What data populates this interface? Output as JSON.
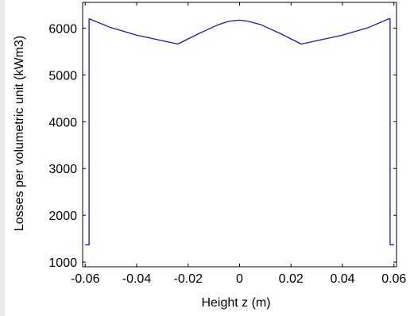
{
  "chart_data": {
    "type": "line",
    "title": "",
    "xlabel": "Height z (m)",
    "ylabel": "Losses per volumetric unit (kWm3)",
    "xlim": [
      -0.061,
      0.061
    ],
    "ylim": [
      900,
      6550
    ],
    "xticks": [
      -0.06,
      -0.04,
      -0.02,
      0,
      0.02,
      0.04,
      0.06
    ],
    "xtick_labels": [
      "-0.06",
      "-0.04",
      "-0.02",
      "0",
      "0.02",
      "0.04",
      "0.06"
    ],
    "yticks": [
      1000,
      2000,
      3000,
      4000,
      5000,
      6000
    ],
    "ytick_labels": [
      "1000",
      "2000",
      "3000",
      "4000",
      "5000",
      "6000"
    ],
    "grid": false,
    "legend": "none",
    "series": [
      {
        "color": "#1a1aa8",
        "x": [
          -0.06,
          -0.0585,
          -0.0585,
          -0.05,
          -0.04,
          -0.03,
          -0.024,
          -0.016,
          -0.008,
          -0.004,
          0,
          0.003,
          0.008,
          0.016,
          0.024,
          0.03,
          0.04,
          0.05,
          0.058,
          0.0585,
          0.0585,
          0.06
        ],
        "y": [
          1370,
          1370,
          6200,
          6010,
          5850,
          5730,
          5660,
          5880,
          6080,
          6150,
          6170,
          6150,
          6080,
          5880,
          5660,
          5730,
          5850,
          6010,
          6200,
          6200,
          1370,
          1370
        ]
      }
    ]
  }
}
